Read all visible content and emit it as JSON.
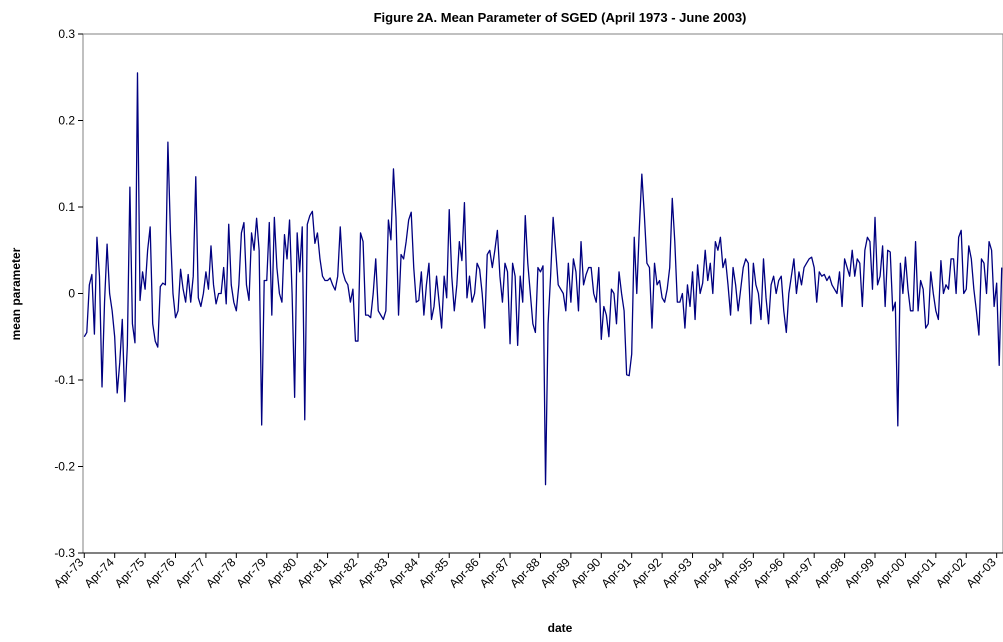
{
  "chart_data": {
    "type": "line",
    "title": "Figure 2A.  Mean Parameter of SGED (April 1973 - June 2003)",
    "xlabel": "date",
    "ylabel": "mean parameter",
    "ylim": [
      -0.3,
      0.3
    ],
    "yticks": [
      -0.3,
      -0.2,
      -0.1,
      0,
      0.1,
      0.2,
      0.3
    ],
    "grid": false,
    "categories": [
      "Apr-73",
      null,
      null,
      null,
      null,
      null,
      null,
      null,
      null,
      null,
      null,
      null,
      "Apr-74",
      null,
      null,
      null,
      null,
      null,
      null,
      null,
      null,
      null,
      null,
      null,
      "Apr-75",
      null,
      null,
      null,
      null,
      null,
      null,
      null,
      null,
      null,
      null,
      null,
      "Apr-76",
      null,
      null,
      null,
      null,
      null,
      null,
      null,
      null,
      null,
      null,
      null,
      "Apr-77",
      null,
      null,
      null,
      null,
      null,
      null,
      null,
      null,
      null,
      null,
      null,
      "Apr-78",
      null,
      null,
      null,
      null,
      null,
      null,
      null,
      null,
      null,
      null,
      null,
      "Apr-79",
      null,
      null,
      null,
      null,
      null,
      null,
      null,
      null,
      null,
      null,
      null,
      "Apr-80",
      null,
      null,
      null,
      null,
      null,
      null,
      null,
      null,
      null,
      null,
      null,
      "Apr-81",
      null,
      null,
      null,
      null,
      null,
      null,
      null,
      null,
      null,
      null,
      null,
      "Apr-82",
      null,
      null,
      null,
      null,
      null,
      null,
      null,
      null,
      null,
      null,
      null,
      "Apr-83",
      null,
      null,
      null,
      null,
      null,
      null,
      null,
      null,
      null,
      null,
      null,
      "Apr-84",
      null,
      null,
      null,
      null,
      null,
      null,
      null,
      null,
      null,
      null,
      null,
      "Apr-85",
      null,
      null,
      null,
      null,
      null,
      null,
      null,
      null,
      null,
      null,
      null,
      "Apr-86",
      null,
      null,
      null,
      null,
      null,
      null,
      null,
      null,
      null,
      null,
      null,
      "Apr-87",
      null,
      null,
      null,
      null,
      null,
      null,
      null,
      null,
      null,
      null,
      null,
      "Apr-88",
      null,
      null,
      null,
      null,
      null,
      null,
      null,
      null,
      null,
      null,
      null,
      "Apr-89",
      null,
      null,
      null,
      null,
      null,
      null,
      null,
      null,
      null,
      null,
      null,
      "Apr-90",
      null,
      null,
      null,
      null,
      null,
      null,
      null,
      null,
      null,
      null,
      null,
      "Apr-91",
      null,
      null,
      null,
      null,
      null,
      null,
      null,
      null,
      null,
      null,
      null,
      "Apr-92",
      null,
      null,
      null,
      null,
      null,
      null,
      null,
      null,
      null,
      null,
      null,
      "Apr-93",
      null,
      null,
      null,
      null,
      null,
      null,
      null,
      null,
      null,
      null,
      null,
      "Apr-94",
      null,
      null,
      null,
      null,
      null,
      null,
      null,
      null,
      null,
      null,
      null,
      "Apr-95",
      null,
      null,
      null,
      null,
      null,
      null,
      null,
      null,
      null,
      null,
      null,
      "Apr-96",
      null,
      null,
      null,
      null,
      null,
      null,
      null,
      null,
      null,
      null,
      null,
      "Apr-97",
      null,
      null,
      null,
      null,
      null,
      null,
      null,
      null,
      null,
      null,
      null,
      "Apr-98",
      null,
      null,
      null,
      null,
      null,
      null,
      null,
      null,
      null,
      null,
      null,
      "Apr-99",
      null,
      null,
      null,
      null,
      null,
      null,
      null,
      null,
      null,
      null,
      null,
      "Apr-00",
      null,
      null,
      null,
      null,
      null,
      null,
      null,
      null,
      null,
      null,
      null,
      "Apr-01",
      null,
      null,
      null,
      null,
      null,
      null,
      null,
      null,
      null,
      null,
      null,
      "Apr-02",
      null,
      null,
      null,
      null,
      null,
      null,
      null,
      null,
      null,
      null,
      null,
      "Apr-03",
      null,
      null
    ],
    "series": [
      {
        "name": "mean parameter",
        "color": "#000080",
        "values": [
          -0.05,
          -0.045,
          0.01,
          0.022,
          -0.047,
          0.065,
          0.02,
          -0.108,
          -0.01,
          0.057,
          0,
          -0.02,
          -0.05,
          -0.115,
          -0.08,
          -0.03,
          -0.125,
          -0.06,
          0.123,
          -0.035,
          -0.057,
          0.255,
          -0.008,
          0.025,
          0.005,
          0.05,
          0.077,
          -0.035,
          -0.055,
          -0.062,
          0.008,
          0.012,
          0.01,
          0.175,
          0.07,
          0,
          -0.028,
          -0.02,
          0.028,
          0.005,
          -0.01,
          0.022,
          -0.01,
          0.02,
          0.135,
          -0.005,
          -0.015,
          0,
          0.025,
          0.005,
          0.055,
          0.01,
          -0.012,
          0,
          0,
          0.03,
          -0.012,
          0.08,
          0.01,
          -0.01,
          -0.02,
          0.01,
          0.07,
          0.082,
          0.01,
          -0.008,
          0.07,
          0.05,
          0.087,
          0.05,
          -0.152,
          0.015,
          0.015,
          0.082,
          -0.025,
          0.088,
          0.03,
          0,
          -0.01,
          0.068,
          0.04,
          0.085,
          0,
          -0.12,
          0.07,
          0.025,
          0.077,
          -0.146,
          0.08,
          0.09,
          0.095,
          0.058,
          0.07,
          0.04,
          0.02,
          0.015,
          0.015,
          0.018,
          0.01,
          0.004,
          0.02,
          0.077,
          0.025,
          0.015,
          0.01,
          -0.01,
          0.005,
          -0.055,
          -0.055,
          0.07,
          0.06,
          -0.025,
          -0.025,
          -0.028,
          0,
          0.04,
          -0.02,
          -0.025,
          -0.03,
          -0.02,
          0.085,
          0.062,
          0.144,
          0.088,
          -0.025,
          0.045,
          0.04,
          0.06,
          0.085,
          0.094,
          0.03,
          -0.01,
          -0.008,
          0.025,
          -0.025,
          0.01,
          0.035,
          -0.03,
          -0.015,
          0.02,
          -0.01,
          -0.04,
          0.02,
          -0.005,
          0.097,
          0.02,
          -0.02,
          0.01,
          0.06,
          0.038,
          0.105,
          -0.005,
          0.02,
          -0.01,
          0,
          0.035,
          0.028,
          0,
          -0.04,
          0.045,
          0.05,
          0.03,
          0.05,
          0.073,
          0.02,
          -0.01,
          0.035,
          0.025,
          -0.058,
          0.035,
          0.02,
          -0.06,
          0.02,
          -0.01,
          0.09,
          0.035,
          0,
          -0.035,
          -0.045,
          0.03,
          0.025,
          0.032,
          -0.221,
          -0.035,
          0.02,
          0.088,
          0.05,
          0.01,
          0.005,
          0,
          -0.02,
          0.035,
          -0.01,
          0.04,
          0.025,
          -0.02,
          0.06,
          0.01,
          0.022,
          0.03,
          0.03,
          0,
          -0.01,
          0.03,
          -0.053,
          -0.015,
          -0.025,
          -0.05,
          0.005,
          0,
          -0.035,
          0.025,
          0,
          -0.02,
          -0.094,
          -0.095,
          -0.07,
          0.065,
          0,
          0.075,
          0.138,
          0.09,
          0.035,
          0.03,
          -0.04,
          0.035,
          0.01,
          0.015,
          -0.005,
          -0.01,
          0.005,
          0.03,
          0.11,
          0.06,
          -0.01,
          -0.01,
          0,
          -0.04,
          0.01,
          -0.015,
          0.025,
          -0.03,
          0.033,
          0,
          0.012,
          0.05,
          0.015,
          0.035,
          0,
          0.06,
          0.05,
          0.065,
          0.03,
          0.04,
          0.01,
          -0.025,
          0.03,
          0.01,
          -0.02,
          0.005,
          0.03,
          0.04,
          0.035,
          -0.035,
          0.035,
          0.01,
          0,
          -0.03,
          0.04,
          -0.005,
          -0.035,
          0.01,
          0.02,
          0,
          0.015,
          0.02,
          -0.02,
          -0.045,
          0,
          0.02,
          0.04,
          0,
          0.025,
          0.01,
          0.03,
          0.035,
          0.04,
          0.042,
          0.03,
          -0.01,
          0.025,
          0.02,
          0.022,
          0.015,
          0.02,
          0.01,
          0.005,
          0,
          0.025,
          -0.015,
          0.04,
          0.03,
          0.02,
          0.05,
          0.02,
          0.04,
          0.035,
          -0.015,
          0.05,
          0.065,
          0.06,
          0.005,
          0.088,
          0.01,
          0.02,
          0.055,
          -0.015,
          0.05,
          0.048,
          -0.02,
          -0.01,
          -0.153,
          0.035,
          0,
          0.042,
          0.005,
          -0.02,
          -0.02,
          0.06,
          -0.02,
          0.015,
          0.005,
          -0.04,
          -0.035,
          0.025,
          0,
          -0.02,
          -0.03,
          0.038,
          0,
          0.01,
          0.005,
          0.04,
          0.04,
          0,
          0.065,
          0.073,
          0,
          0.005,
          0.055,
          0.04,
          0.005,
          -0.02,
          -0.048,
          0.04,
          0.035,
          0,
          0.06,
          0.05,
          -0.015,
          0.012,
          -0.083,
          0.03
        ]
      }
    ]
  }
}
